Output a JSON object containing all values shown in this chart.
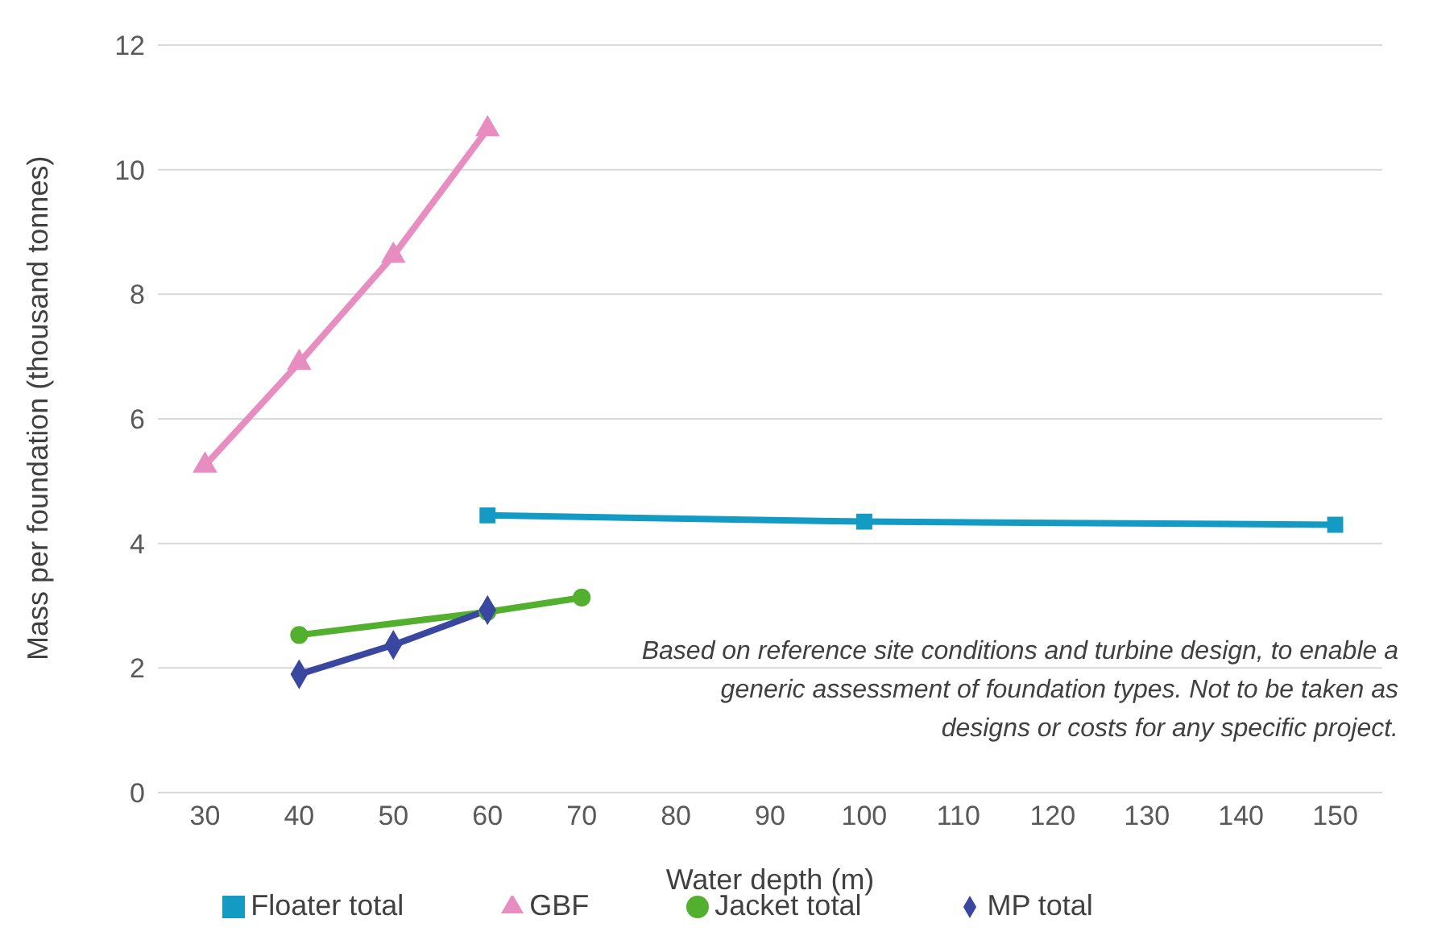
{
  "chart_data": {
    "type": "line",
    "xlabel": "Water depth (m)",
    "ylabel": "Mass per foundation (thousand tonnes)",
    "annotations": [
      "Based on reference site  conditions and turbine design, to enable a generic assessment of foundation types. Not to be taken as designs or costs for any specific project."
    ],
    "xlim": [
      25,
      155
    ],
    "xticks": [
      30,
      40,
      50,
      60,
      70,
      80,
      90,
      100,
      110,
      120,
      130,
      140,
      150
    ],
    "ylim": [
      0,
      12
    ],
    "yticks": [
      0,
      2,
      4,
      6,
      8,
      10,
      12
    ],
    "grid": "y",
    "legend": "bottom",
    "series": [
      {
        "name": "MP total",
        "color": "#3a47a0",
        "marker": "diamond",
        "x": [
          40,
          50,
          60
        ],
        "values": [
          1.9,
          2.37,
          2.93
        ]
      },
      {
        "name": "Jacket total",
        "color": "#52b02e",
        "marker": "circle",
        "x": [
          40,
          60,
          70
        ],
        "values": [
          2.53,
          2.9,
          3.13
        ]
      },
      {
        "name": "GBF",
        "color": "#e88dbf",
        "marker": "triangle",
        "x": [
          30,
          40,
          50,
          60
        ],
        "values": [
          5.25,
          6.9,
          8.62,
          10.65
        ]
      },
      {
        "name": "Floater total",
        "color": "#149bc3",
        "marker": "square",
        "x": [
          60,
          100,
          150
        ],
        "values": [
          4.45,
          4.35,
          4.3
        ]
      }
    ]
  }
}
